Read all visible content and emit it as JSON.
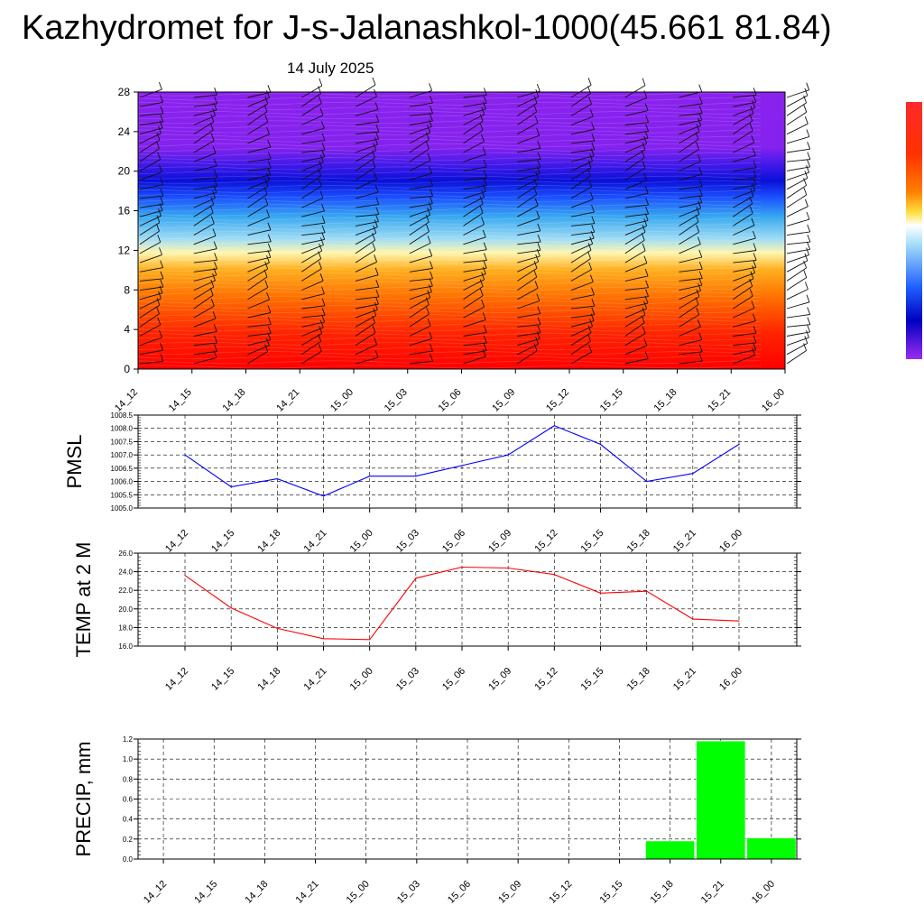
{
  "title": "Kazhydromet for J-s-Jalanashkol-1000(45.661 81.84)",
  "subtitle": "14 July 2025",
  "colors": {
    "pmsl": "#0000ff",
    "temp": "#ff0000",
    "precip": "#00ff00"
  },
  "chart_data": [
    {
      "type": "heatmap",
      "x_ticks": [
        "14_12",
        "14_15",
        "14_18",
        "14_21",
        "15_00",
        "15_03",
        "15_06",
        "15_09",
        "15_12",
        "15_15",
        "15_18",
        "15_21",
        "16_00"
      ],
      "y_ticks": [
        "0",
        "4",
        "8",
        "12",
        "16",
        "20",
        "24",
        "28"
      ],
      "ylim": [
        0,
        28
      ],
      "colormap": [
        "#ff0000",
        "#ff6a00",
        "#ffc23a",
        "#fff3a8",
        "#5ec8f5",
        "#1a44ff",
        "#0000b0",
        "#8b22ee"
      ],
      "has_wind_barbs": true,
      "legend": "colorbar-right"
    },
    {
      "type": "line",
      "ylabel": "PMSL",
      "x": [
        "14_12",
        "14_15",
        "14_18",
        "14_21",
        "15_00",
        "15_03",
        "15_06",
        "15_09",
        "15_12",
        "15_15",
        "15_18",
        "15_21",
        "16_00"
      ],
      "values": [
        1007.0,
        1005.8,
        1006.1,
        1005.45,
        1006.2,
        1006.2,
        1006.6,
        1007.0,
        1008.1,
        1007.4,
        1006.0,
        1006.3,
        1007.4
      ],
      "ylim": [
        1005.0,
        1008.5
      ],
      "y_ticks": [
        "1005.0",
        "1005.5",
        "1006.0",
        "1006.5",
        "1007.0",
        "1007.5",
        "1008.0",
        "1008.5"
      ],
      "grid": true
    },
    {
      "type": "line",
      "ylabel": "TEMP at 2 M",
      "x": [
        "14_12",
        "14_15",
        "14_18",
        "14_21",
        "15_00",
        "15_03",
        "15_06",
        "15_09",
        "15_12",
        "15_15",
        "15_18",
        "15_21",
        "16_00"
      ],
      "values": [
        23.6,
        20.1,
        17.9,
        16.8,
        16.7,
        23.3,
        24.5,
        24.4,
        23.7,
        21.7,
        21.9,
        18.9,
        18.7
      ],
      "ylim": [
        16.0,
        26.0
      ],
      "y_ticks": [
        "16.0",
        "18.0",
        "20.0",
        "22.0",
        "24.0",
        "26.0"
      ],
      "grid": true
    },
    {
      "type": "bar",
      "ylabel": "PRECIP, mm",
      "categories": [
        "14_12",
        "14_15",
        "14_18",
        "14_21",
        "15_00",
        "15_03",
        "15_06",
        "15_09",
        "15_12",
        "15_15",
        "15_18",
        "15_21",
        "16_00"
      ],
      "values": [
        0,
        0,
        0,
        0,
        0,
        0,
        0,
        0,
        0,
        0,
        0.18,
        1.18,
        0.21
      ],
      "ylim": [
        0.0,
        1.2
      ],
      "y_ticks": [
        "0.0",
        "0.2",
        "0.4",
        "0.6",
        "0.8",
        "1.0",
        "1.2"
      ],
      "grid": true
    }
  ]
}
